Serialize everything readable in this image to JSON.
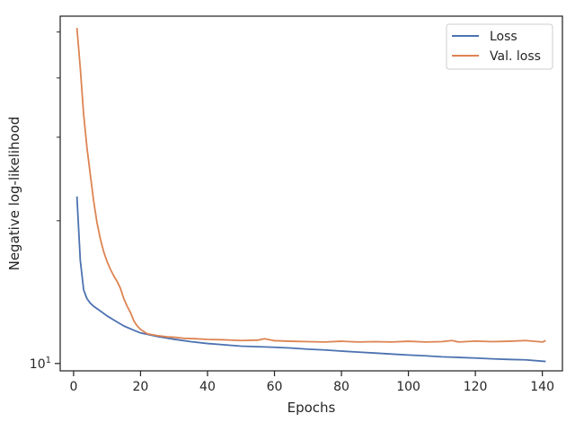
{
  "chart_data": {
    "type": "line",
    "xlabel": "Epochs",
    "ylabel": "Negative log-likelihood",
    "yscale": "log",
    "xlim": [
      -4,
      146
    ],
    "ylim": [
      9.65,
      54
    ],
    "x_ticks": [
      0,
      20,
      40,
      60,
      80,
      100,
      120,
      140
    ],
    "x_tick_labels": [
      "0",
      "20",
      "40",
      "60",
      "80",
      "100",
      "120",
      "140"
    ],
    "y_major_ticks": [
      10
    ],
    "y_major_tick_label_base": "10",
    "y_major_tick_label_exp": "1",
    "y_minor_ticks": [
      20,
      30,
      40,
      50
    ],
    "grid": false,
    "legend_position": "top-right",
    "series": [
      {
        "name": "Loss",
        "color": "#4c72b0",
        "points": [
          [
            1,
            22.5
          ],
          [
            2,
            16.5
          ],
          [
            3,
            14.3
          ],
          [
            4,
            13.7
          ],
          [
            5,
            13.4
          ],
          [
            6,
            13.2
          ],
          [
            8,
            12.9
          ],
          [
            10,
            12.6
          ],
          [
            12,
            12.35
          ],
          [
            15,
            12.0
          ],
          [
            18,
            11.75
          ],
          [
            20,
            11.6
          ],
          [
            25,
            11.4
          ],
          [
            30,
            11.25
          ],
          [
            35,
            11.12
          ],
          [
            40,
            11.02
          ],
          [
            45,
            10.95
          ],
          [
            50,
            10.88
          ],
          [
            55,
            10.85
          ],
          [
            60,
            10.82
          ],
          [
            65,
            10.78
          ],
          [
            70,
            10.72
          ],
          [
            75,
            10.68
          ],
          [
            80,
            10.62
          ],
          [
            85,
            10.57
          ],
          [
            90,
            10.52
          ],
          [
            95,
            10.47
          ],
          [
            100,
            10.42
          ],
          [
            105,
            10.38
          ],
          [
            110,
            10.33
          ],
          [
            115,
            10.3
          ],
          [
            120,
            10.27
          ],
          [
            125,
            10.23
          ],
          [
            130,
            10.2
          ],
          [
            135,
            10.18
          ],
          [
            141,
            10.1
          ]
        ]
      },
      {
        "name": "Val. loss",
        "color": "#dd8452",
        "points": [
          [
            1,
            51
          ],
          [
            2,
            42
          ],
          [
            3,
            33.5
          ],
          [
            4,
            28.5
          ],
          [
            5,
            25.0
          ],
          [
            6,
            22.0
          ],
          [
            7,
            19.8
          ],
          [
            8,
            18.3
          ],
          [
            9,
            17.2
          ],
          [
            10,
            16.4
          ],
          [
            11,
            15.8
          ],
          [
            12,
            15.3
          ],
          [
            13,
            14.9
          ],
          [
            14,
            14.4
          ],
          [
            15,
            13.7
          ],
          [
            16,
            13.2
          ],
          [
            17,
            12.8
          ],
          [
            18,
            12.3
          ],
          [
            19,
            12.0
          ],
          [
            20,
            11.8
          ],
          [
            22,
            11.55
          ],
          [
            25,
            11.45
          ],
          [
            28,
            11.38
          ],
          [
            30,
            11.36
          ],
          [
            33,
            11.3
          ],
          [
            36,
            11.28
          ],
          [
            40,
            11.24
          ],
          [
            45,
            11.22
          ],
          [
            50,
            11.18
          ],
          [
            55,
            11.2
          ],
          [
            57,
            11.28
          ],
          [
            60,
            11.17
          ],
          [
            65,
            11.14
          ],
          [
            70,
            11.12
          ],
          [
            75,
            11.1
          ],
          [
            80,
            11.14
          ],
          [
            85,
            11.1
          ],
          [
            90,
            11.12
          ],
          [
            95,
            11.1
          ],
          [
            100,
            11.14
          ],
          [
            105,
            11.1
          ],
          [
            110,
            11.12
          ],
          [
            113,
            11.18
          ],
          [
            115,
            11.1
          ],
          [
            120,
            11.15
          ],
          [
            125,
            11.12
          ],
          [
            130,
            11.14
          ],
          [
            135,
            11.18
          ],
          [
            140,
            11.1
          ],
          [
            141,
            11.18
          ]
        ]
      }
    ]
  }
}
